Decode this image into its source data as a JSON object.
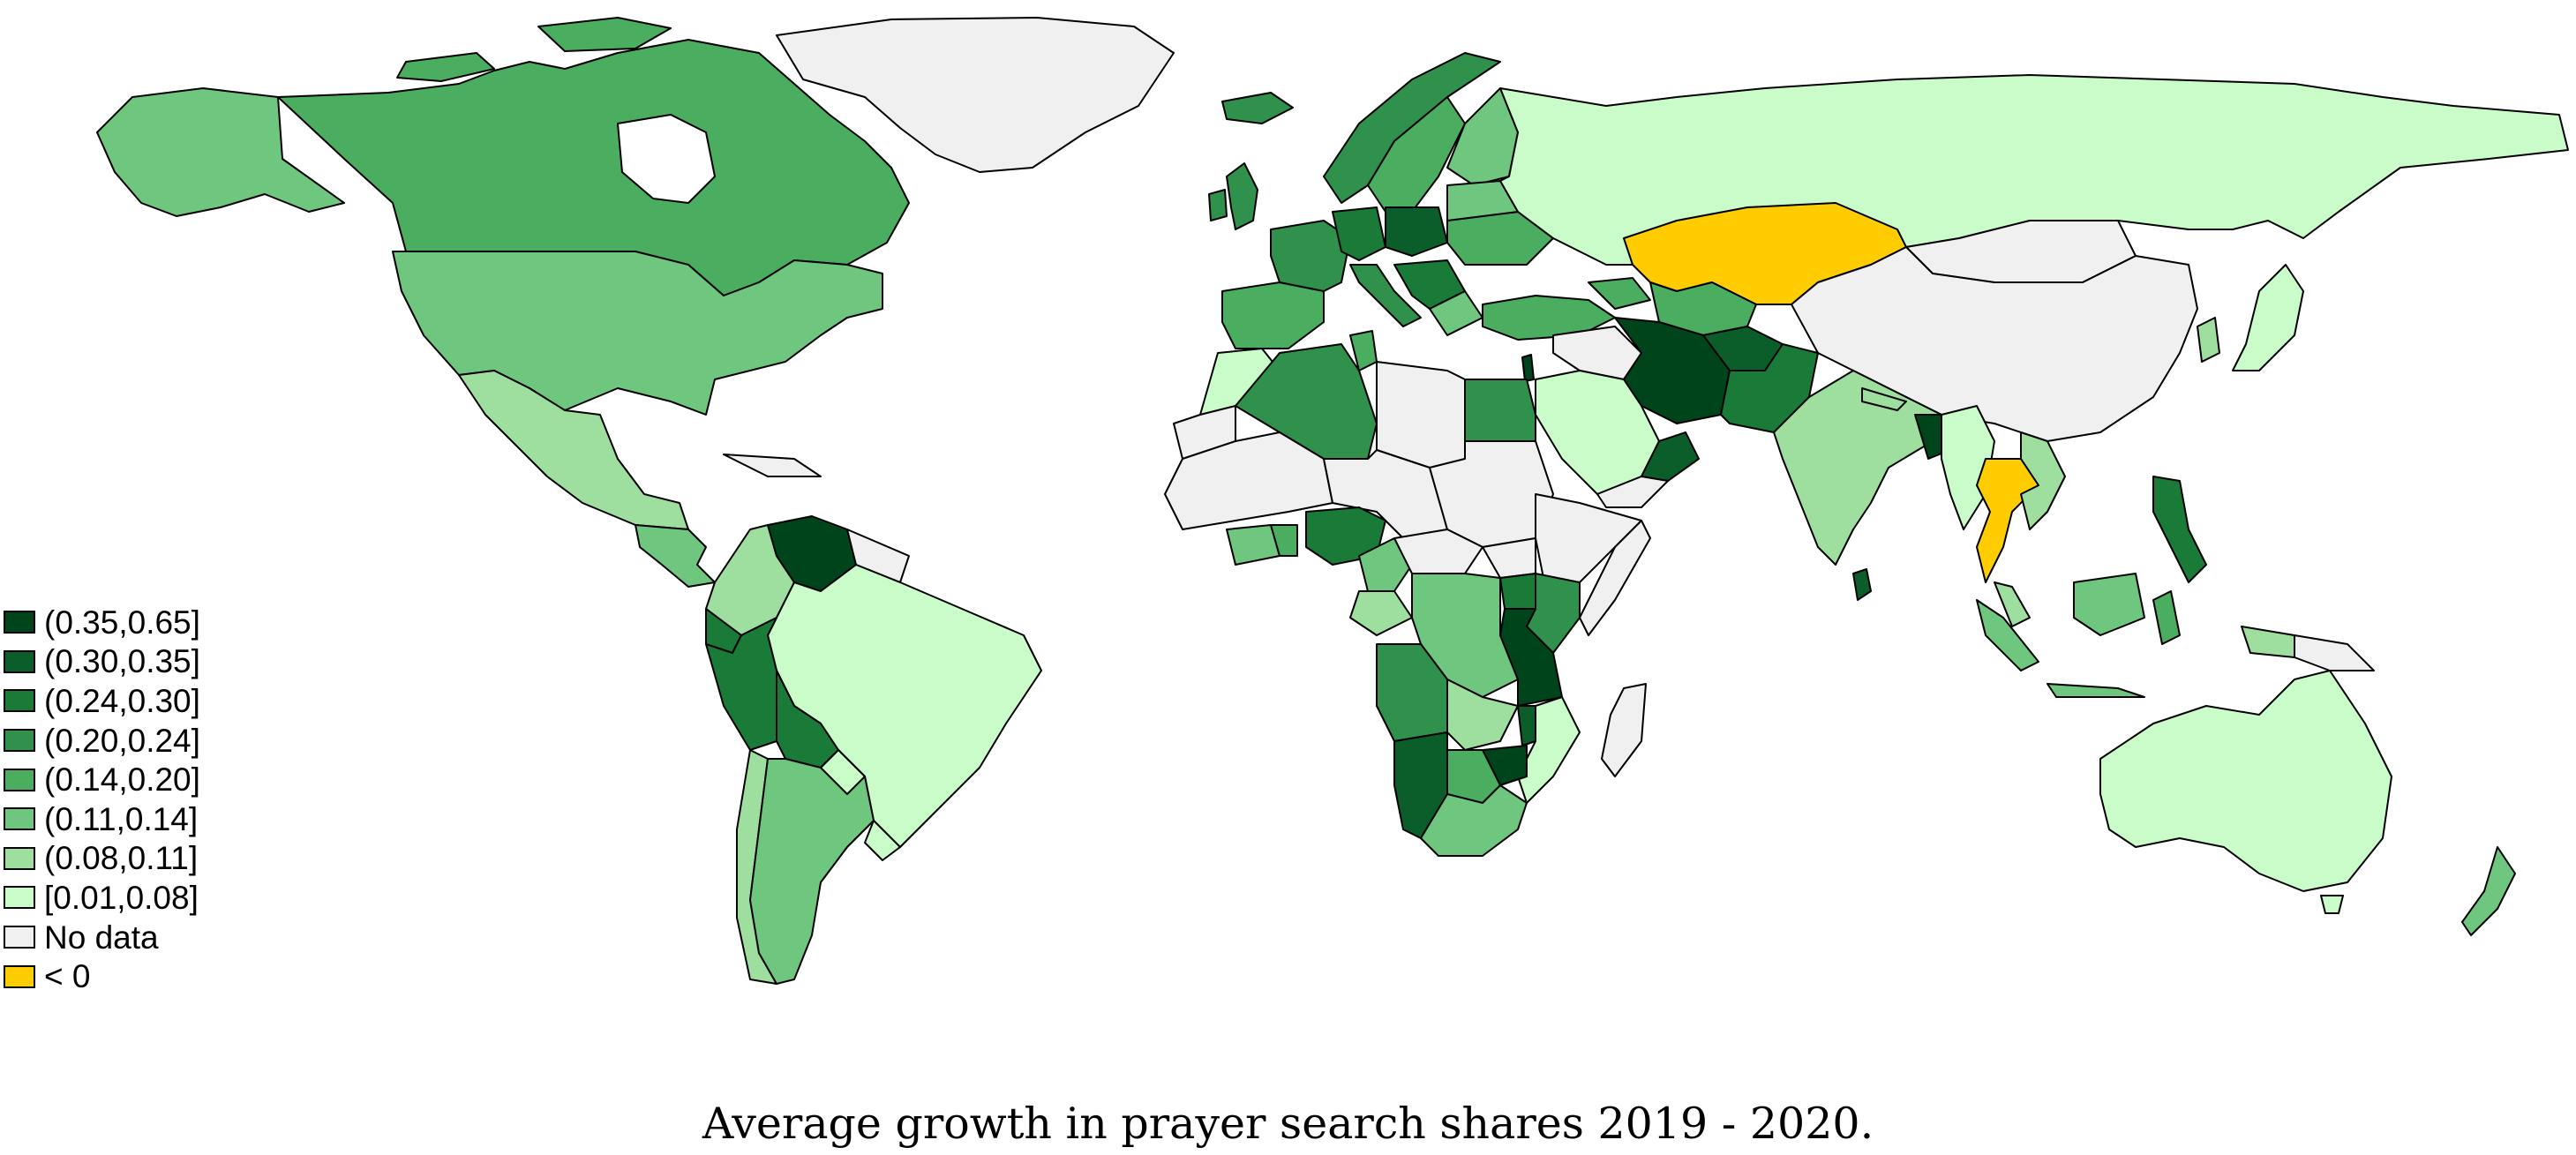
{
  "caption": "Average growth in prayer search shares 2019 - 2020.",
  "colors": {
    "c8": "#00441b",
    "c7": "#0b5d2a",
    "c6": "#1a7a38",
    "c5": "#2f914b",
    "c4": "#4bad5f",
    "c3": "#6fc67f",
    "c2": "#9edf9f",
    "c1": "#c9fcc9",
    "nodata": "#f0f0f0",
    "negative": "#ffcc00",
    "ocean": "#ffffff"
  },
  "legend": [
    {
      "label": "(0.35,0.65]",
      "color": "#00441b"
    },
    {
      "label": "(0.30,0.35]",
      "color": "#0b5d2a"
    },
    {
      "label": "(0.24,0.30]",
      "color": "#1a7a38"
    },
    {
      "label": "(0.20,0.24]",
      "color": "#2f914b"
    },
    {
      "label": "(0.14,0.20]",
      "color": "#4bad5f"
    },
    {
      "label": "(0.11,0.14]",
      "color": "#6fc67f"
    },
    {
      "label": "(0.08,0.11]",
      "color": "#9edf9f"
    },
    {
      "label": "[0.01,0.08]",
      "color": "#c9fcc9"
    },
    {
      "label": "No data",
      "color": "#f0f0f0"
    },
    {
      "label": " < 0",
      "color": "#ffcc00"
    }
  ]
}
